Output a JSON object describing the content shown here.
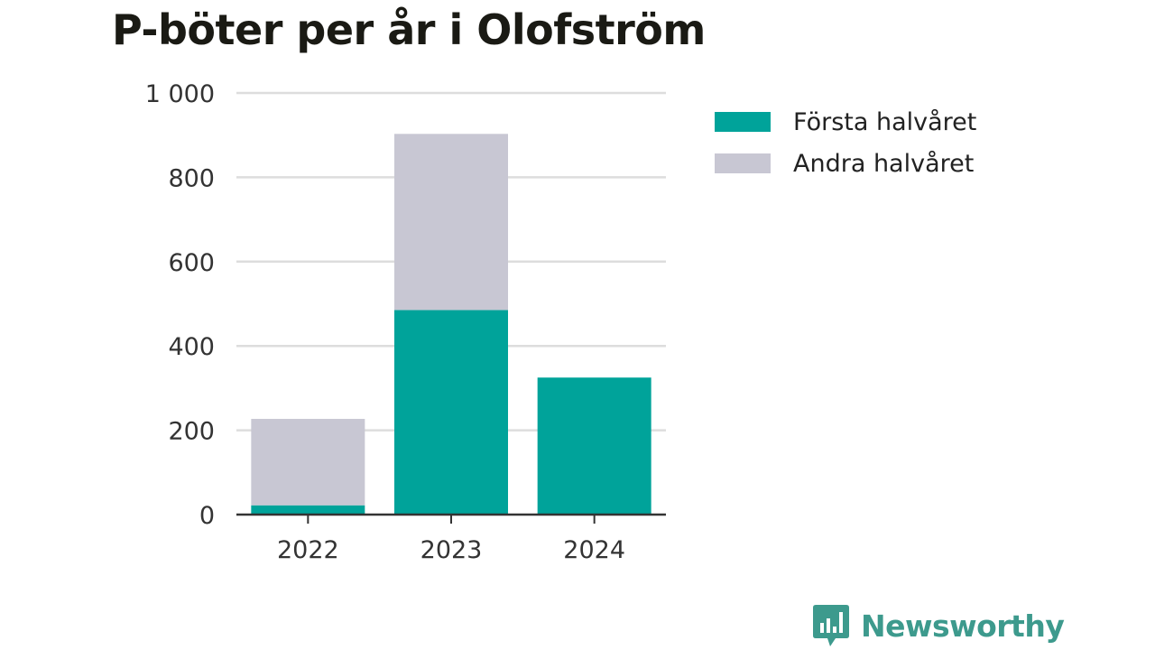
{
  "title": "P-böter per år i Olofström",
  "colors": {
    "first_half": "#00a39a",
    "second_half": "#c8c7d3",
    "brand": "#3d9a8d",
    "grid": "#dddddd",
    "axis": "#333333"
  },
  "legend": [
    {
      "label": "Första halvåret",
      "color": "#00a39a"
    },
    {
      "label": "Andra halvåret",
      "color": "#c8c7d3"
    }
  ],
  "brand": {
    "name": "Newsworthy",
    "icon": "bar-chart-speech-bubble-icon"
  },
  "chart_data": {
    "type": "bar",
    "stacked": true,
    "title": "P-böter per år i Olofström",
    "categories": [
      "2022",
      "2023",
      "2024"
    ],
    "series": [
      {
        "name": "Första halvåret",
        "values": [
          22,
          485,
          325
        ]
      },
      {
        "name": "Andra halvåret",
        "values": [
          205,
          418,
          0
        ]
      }
    ],
    "ylim": [
      0,
      1000
    ],
    "yticks": [
      0,
      200,
      400,
      600,
      800,
      1000
    ],
    "ytick_labels": [
      "0",
      "200",
      "400",
      "600",
      "800",
      "1 000"
    ],
    "xlabel": "",
    "ylabel": "",
    "grid": true,
    "legend_position": "top-right"
  }
}
